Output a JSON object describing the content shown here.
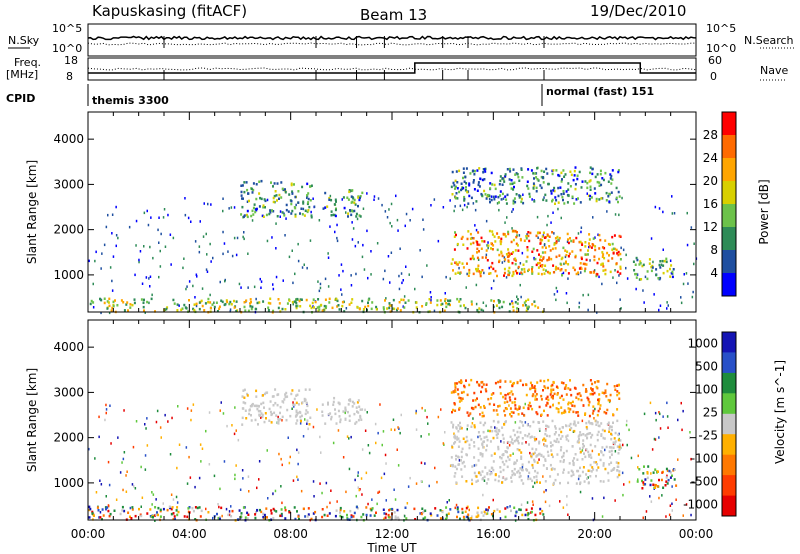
{
  "header": {
    "station": "Kapuskasing (fitACF)",
    "beam": "Beam 13",
    "date": "19/Dec/2010"
  },
  "top_panels": {
    "nsky_label": "N.Sky",
    "nsky_ticks": [
      "10^5",
      "10^0"
    ],
    "nsearch_label": "N.Search",
    "nsearch_ticks": [
      "10^5",
      "10^0"
    ],
    "freq_label_1": "Freq.",
    "freq_label_2": "[MHz]",
    "freq_ticks": [
      "18",
      "8"
    ],
    "nave_label": "Nave",
    "nave_ticks": [
      "60",
      "0"
    ],
    "cpid_label": "CPID",
    "cpid_left": "themis 3300",
    "cpid_right": "normal (fast) 151"
  },
  "colors": {
    "power_scale": [
      "#0000ff",
      "#1f4fa0",
      "#2e8b57",
      "#6cc24a",
      "#d8d000",
      "#ffa500",
      "#ff6a00",
      "#ff0000"
    ],
    "velocity_scale": [
      "#1414b4",
      "#2850c8",
      "#1e8c3c",
      "#5fc83c",
      "#c8c8c8",
      "#ffb000",
      "#ff7800",
      "#ff3c00",
      "#e60000"
    ]
  },
  "chart_data": [
    {
      "type": "heatmap",
      "panel": "power",
      "ylabel": "Slant Range [km]",
      "xlabel": "",
      "x_tick_labels": [
        "00:00",
        "04:00",
        "08:00",
        "12:00",
        "16:00",
        "20:00",
        "00:00"
      ],
      "x_ticks_hours": [
        0,
        4,
        8,
        12,
        16,
        20,
        24
      ],
      "xlim_hours": [
        0,
        24
      ],
      "y_tick_labels": [
        "1000",
        "2000",
        "3000",
        "4000"
      ],
      "y_ticks": [
        1000,
        2000,
        3000,
        4000
      ],
      "ylim": [
        180,
        4600
      ],
      "colorbar_label": "Power [dB]",
      "colorbar_ticks": [
        "4",
        "8",
        "12",
        "16",
        "20",
        "24",
        "28"
      ],
      "colorbar_range": [
        0,
        32
      ],
      "regions": [
        {
          "t0": 6.0,
          "t1": 8.8,
          "r0": 2300,
          "r1": 3100,
          "level": 0.35
        },
        {
          "t0": 9.2,
          "t1": 10.8,
          "r0": 2300,
          "r1": 2900,
          "level": 0.3
        },
        {
          "t0": 14.3,
          "t1": 21.0,
          "r0": 1000,
          "r1": 2000,
          "level": 0.7
        },
        {
          "t0": 14.3,
          "t1": 21.0,
          "r0": 2600,
          "r1": 3400,
          "level": 0.3
        },
        {
          "t0": 21.5,
          "t1": 23.2,
          "r0": 900,
          "r1": 1400,
          "level": 0.35
        },
        {
          "t0": 0.0,
          "t1": 18.0,
          "r0": 200,
          "r1": 500,
          "level": 0.5
        }
      ]
    },
    {
      "type": "heatmap",
      "panel": "velocity",
      "ylabel": "Slant Range [km]",
      "xlabel": "Time UT",
      "x_tick_labels": [
        "00:00",
        "04:00",
        "08:00",
        "12:00",
        "16:00",
        "20:00",
        "00:00"
      ],
      "x_ticks_hours": [
        0,
        4,
        8,
        12,
        16,
        20,
        24
      ],
      "xlim_hours": [
        0,
        24
      ],
      "y_tick_labels": [
        "1000",
        "2000",
        "3000",
        "4000"
      ],
      "y_ticks": [
        1000,
        2000,
        3000,
        4000
      ],
      "ylim": [
        180,
        4600
      ],
      "colorbar_label": "Velocity [m s^-1]",
      "colorbar_ticks": [
        "1000",
        "500",
        "100",
        "25",
        "-25",
        "-100",
        "-500",
        "-1000"
      ],
      "regions": [
        {
          "t0": 6.0,
          "t1": 8.8,
          "r0": 2300,
          "r1": 3100,
          "level": "ground"
        },
        {
          "t0": 9.2,
          "t1": 10.8,
          "r0": 2300,
          "r1": 2900,
          "level": "ground"
        },
        {
          "t0": 14.3,
          "t1": 21.0,
          "r0": 1000,
          "r1": 2400,
          "level": "ground"
        },
        {
          "t0": 14.3,
          "t1": 21.0,
          "r0": 2500,
          "r1": 3300,
          "level": "negative"
        },
        {
          "t0": 21.5,
          "t1": 23.2,
          "r0": 900,
          "r1": 1400,
          "level": "mixed"
        },
        {
          "t0": 0.0,
          "t1": 18.0,
          "r0": 200,
          "r1": 500,
          "level": "mixed"
        }
      ]
    }
  ]
}
